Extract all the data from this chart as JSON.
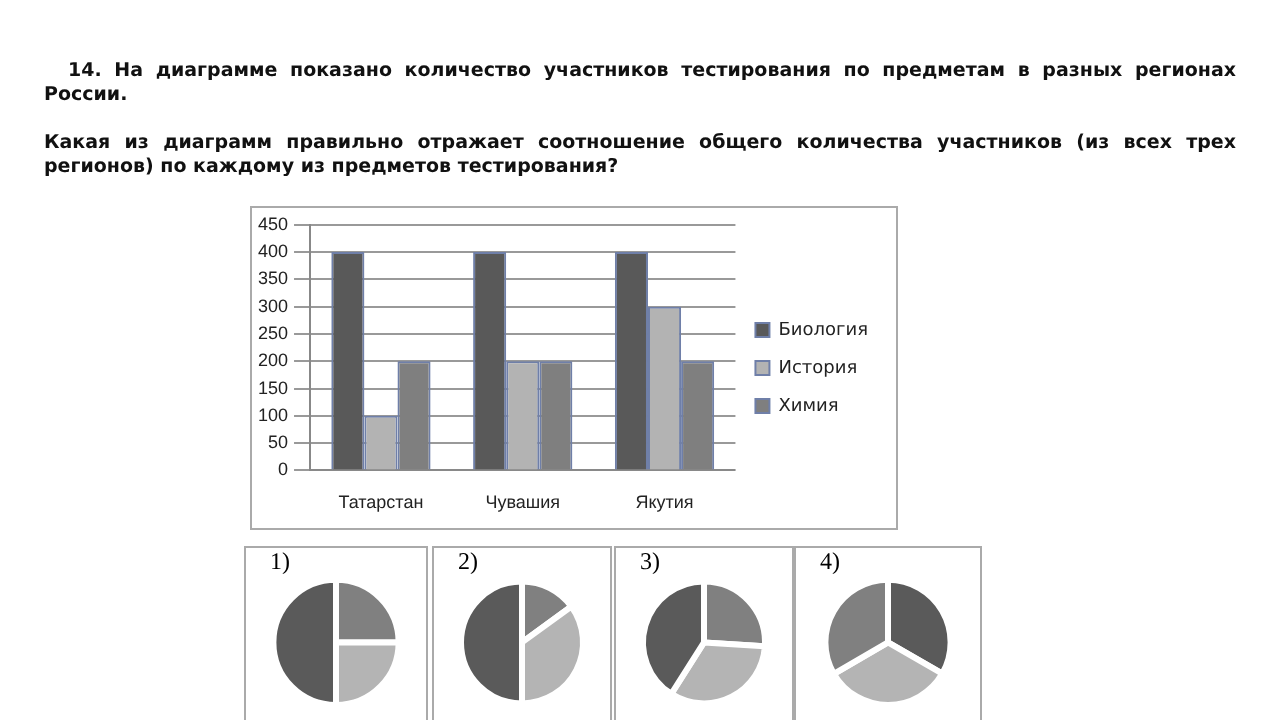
{
  "chart_data": [
    {
      "type": "bar",
      "title": "14. На диаграмме показано количество участников тестирования по предметам в разных регионах России.",
      "subtitle": "Какая из диаграмм правильно отражает соотношение общего количества участников (из всех трех регионов) по каждому из предметов тестирования?",
      "categories": [
        "Татарстан",
        "Чувашия",
        "Якутия"
      ],
      "series": [
        {
          "name": "Биология",
          "color": "#595959",
          "values": [
            400,
            400,
            400
          ]
        },
        {
          "name": "История",
          "color": "#b3b3b3",
          "values": [
            100,
            200,
            300
          ]
        },
        {
          "name": "Химия",
          "color": "#7f7f7f",
          "values": [
            200,
            200,
            200
          ]
        }
      ],
      "ylim": [
        0,
        450
      ],
      "yticks": [
        0,
        50,
        100,
        150,
        200,
        250,
        300,
        350,
        400,
        450
      ],
      "grid": "y",
      "legend": "right"
    },
    {
      "type": "pie",
      "title": "1)",
      "categories": [
        null,
        null,
        null
      ],
      "values": [
        25,
        25,
        50
      ],
      "colors": [
        "#808080",
        "#b4b4b4",
        "#5a5a5a"
      ]
    },
    {
      "type": "pie",
      "title": "2)",
      "categories": [
        null,
        null,
        null
      ],
      "values": [
        15,
        35,
        50
      ],
      "colors": [
        "#808080",
        "#b4b4b4",
        "#5a5a5a"
      ]
    },
    {
      "type": "pie",
      "title": "3)",
      "categories": [
        null,
        null,
        null
      ],
      "values": [
        26,
        33,
        41
      ],
      "colors": [
        "#808080",
        "#b4b4b4",
        "#5a5a5a"
      ]
    },
    {
      "type": "pie",
      "title": "4)",
      "categories": [
        null,
        null,
        null
      ],
      "values": [
        33.3,
        33.3,
        33.4
      ],
      "colors": [
        "#5a5a5a",
        "#b4b4b4",
        "#808080"
      ]
    }
  ]
}
